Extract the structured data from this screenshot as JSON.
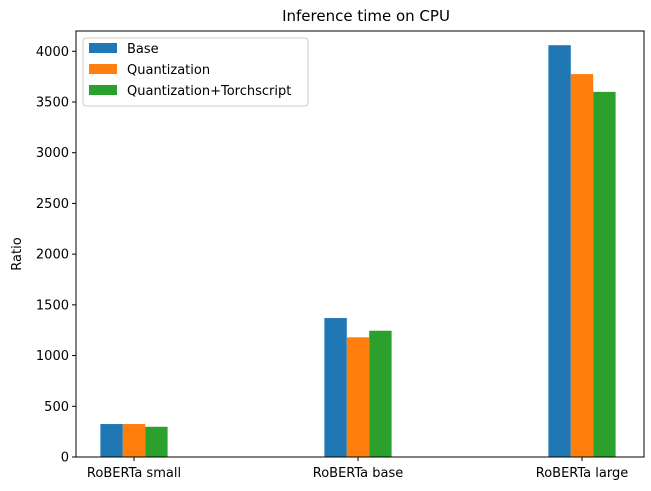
{
  "chart_data": {
    "type": "bar",
    "title": "Inference time on CPU",
    "xlabel": "",
    "ylabel": "Ratio",
    "categories": [
      "RoBERTa small",
      "RoBERTa base",
      "RoBERTa large"
    ],
    "series": [
      {
        "name": "Base",
        "color": "#1f77b4",
        "values": [
          325,
          1370,
          4060
        ]
      },
      {
        "name": "Quantization",
        "color": "#ff7f0e",
        "values": [
          325,
          1180,
          3775
        ]
      },
      {
        "name": "Quantization+Torchscript",
        "color": "#2ca02c",
        "values": [
          298,
          1245,
          3600
        ]
      }
    ],
    "ylim": [
      0,
      4200
    ],
    "yticks": [
      0,
      500,
      1000,
      1500,
      2000,
      2500,
      3000,
      3500,
      4000
    ],
    "grid": false,
    "legend_position": "top-left"
  }
}
